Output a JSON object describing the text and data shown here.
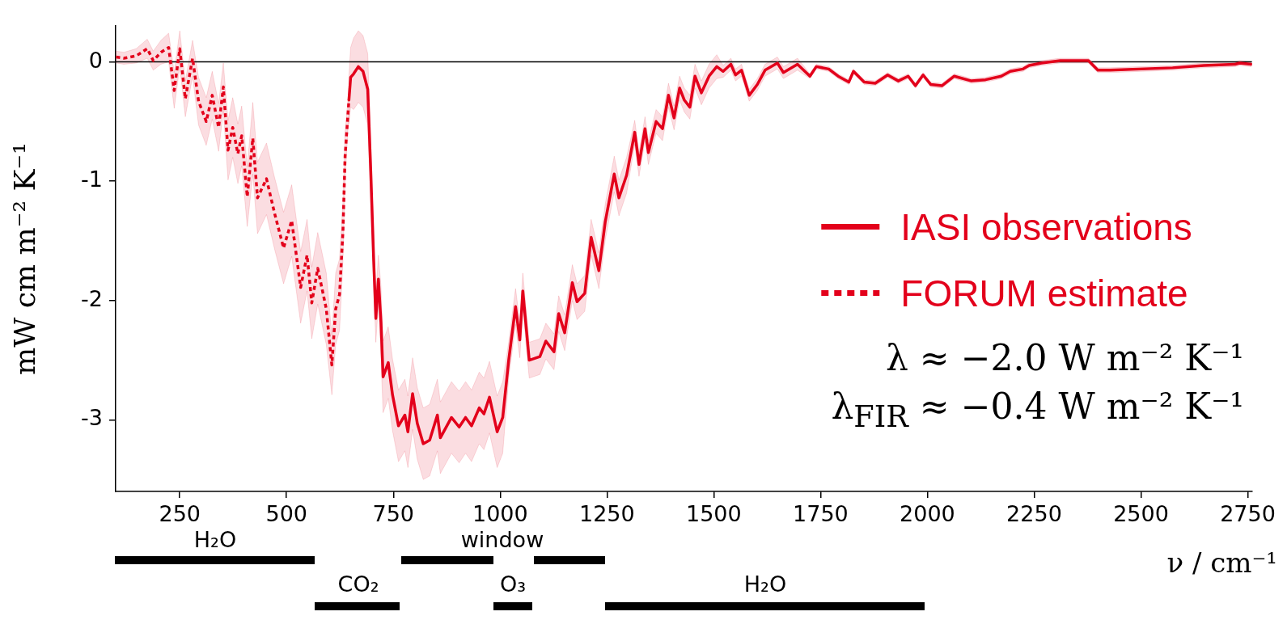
{
  "chart_data": {
    "type": "line",
    "xlabel": "ν / cm⁻¹",
    "ylabel": "mW cm m⁻² K⁻¹",
    "xlim": [
      100,
      2760
    ],
    "ylim": [
      -3.6,
      0.3
    ],
    "xticks": [
      250,
      500,
      750,
      1000,
      1250,
      1500,
      1750,
      2000,
      2250,
      2500,
      2750
    ],
    "yticks": [
      0,
      -1,
      -2,
      -3
    ],
    "legend": "right",
    "ref_lines": [
      {
        "axis": "y",
        "value": 0,
        "color": "#000000"
      }
    ],
    "annotations": [
      "λ ≈ −2.0 W m⁻² K⁻¹",
      "λ$_{FIR}$ ≈ −0.4 W m⁻² K⁻¹",
      "H₂O",
      "window",
      "CO₂",
      "O₃",
      "H₂O"
    ],
    "series": [
      {
        "name": "IASI observations",
        "color": "#e3001b",
        "type": "line",
        "line_style": "solid",
        "x": [
          646,
          650,
          657,
          668,
          679,
          690,
          697,
          704,
          709,
          715,
          721,
          726,
          738,
          748,
          762,
          777,
          784,
          795,
          806,
          820,
          835,
          853,
          860,
          886,
          904,
          919,
          933,
          951,
          962,
          975,
          993,
          1006,
          1020,
          1036,
          1046,
          1053,
          1068,
          1093,
          1107,
          1126,
          1137,
          1151,
          1169,
          1180,
          1198,
          1213,
          1231,
          1246,
          1267,
          1278,
          1296,
          1315,
          1325,
          1339,
          1347,
          1365,
          1380,
          1394,
          1407,
          1420,
          1431,
          1444,
          1456,
          1471,
          1489,
          1507,
          1522,
          1540,
          1551,
          1565,
          1583,
          1602,
          1620,
          1649,
          1663,
          1696,
          1725,
          1740,
          1769,
          1791,
          1816,
          1827,
          1852,
          1878,
          1907,
          1932,
          1955,
          1972,
          1990,
          2008,
          2034,
          2063,
          2103,
          2136,
          2173,
          2194,
          2224,
          2238,
          2267,
          2311,
          2377,
          2399,
          2428,
          2574,
          2647,
          2720,
          2731,
          2758
        ],
        "values": [
          -0.32,
          -0.13,
          -0.1,
          -0.04,
          -0.08,
          -0.23,
          -0.91,
          -1.67,
          -2.15,
          -1.82,
          -2.18,
          -2.64,
          -2.52,
          -2.79,
          -3.05,
          -2.96,
          -3.1,
          -2.78,
          -3.03,
          -3.2,
          -3.17,
          -2.96,
          -3.15,
          -2.98,
          -3.06,
          -2.98,
          -3.05,
          -2.9,
          -2.95,
          -2.81,
          -3.1,
          -2.98,
          -2.5,
          -2.05,
          -2.33,
          -1.92,
          -2.5,
          -2.47,
          -2.34,
          -2.43,
          -2.11,
          -2.27,
          -1.85,
          -2.01,
          -1.94,
          -1.47,
          -1.75,
          -1.34,
          -0.94,
          -1.14,
          -0.95,
          -0.59,
          -0.86,
          -0.56,
          -0.76,
          -0.5,
          -0.56,
          -0.28,
          -0.47,
          -0.22,
          -0.32,
          -0.38,
          -0.12,
          -0.26,
          -0.12,
          -0.04,
          -0.08,
          -0.02,
          -0.11,
          -0.07,
          -0.28,
          -0.19,
          -0.07,
          -0.01,
          -0.09,
          -0.02,
          -0.12,
          -0.04,
          -0.06,
          -0.12,
          -0.17,
          -0.08,
          -0.17,
          -0.18,
          -0.11,
          -0.16,
          -0.12,
          -0.2,
          -0.11,
          -0.19,
          -0.2,
          -0.12,
          -0.16,
          -0.15,
          -0.12,
          -0.08,
          -0.06,
          -0.03,
          -0.01,
          0.01,
          0.01,
          -0.07,
          -0.07,
          -0.05,
          -0.03,
          -0.02,
          -0.01,
          -0.02
        ],
        "lower": [
          -0.52,
          -0.38,
          -0.4,
          -0.34,
          -0.38,
          -0.53,
          -1.16,
          -1.87,
          -2.35,
          -2.02,
          -2.48,
          -2.94,
          -2.82,
          -3.09,
          -3.35,
          -3.26,
          -3.4,
          -3.08,
          -3.33,
          -3.5,
          -3.47,
          -3.26,
          -3.45,
          -3.28,
          -3.36,
          -3.28,
          -3.35,
          -3.2,
          -3.25,
          -3.11,
          -3.4,
          -3.28,
          -2.65,
          -2.2,
          -2.48,
          -2.07,
          -2.65,
          -2.62,
          -2.49,
          -2.58,
          -2.26,
          -2.42,
          -2,
          -2.16,
          -2.09,
          -1.62,
          -1.9,
          -1.49,
          -1.09,
          -1.29,
          -1.1,
          -0.69,
          -0.96,
          -0.66,
          -0.86,
          -0.6,
          -0.66,
          -0.38,
          -0.57,
          -0.32,
          -0.42,
          -0.48,
          -0.22,
          -0.36,
          -0.22,
          -0.14,
          -0.13,
          -0.07,
          -0.16,
          -0.12,
          -0.33,
          -0.24,
          -0.12,
          -0.06,
          -0.14,
          -0.07,
          -0.14,
          -0.06,
          -0.08,
          -0.14,
          -0.19,
          -0.1,
          -0.19,
          -0.2,
          -0.13,
          -0.18,
          -0.14,
          -0.22,
          -0.13,
          -0.21,
          -0.22,
          -0.14,
          -0.18,
          -0.17,
          -0.14,
          -0.1,
          -0.08,
          -0.05,
          -0.03,
          -0.01,
          -0.01,
          -0.09,
          -0.09,
          -0.07,
          -0.05,
          -0.04,
          -0.03,
          -0.04
        ],
        "upper": [
          -0.12,
          0.12,
          0.2,
          0.26,
          0.22,
          0.07,
          -0.66,
          -1.47,
          -1.95,
          -1.62,
          -1.88,
          -2.34,
          -2.22,
          -2.49,
          -2.75,
          -2.66,
          -2.8,
          -2.48,
          -2.73,
          -2.9,
          -2.87,
          -2.66,
          -2.85,
          -2.68,
          -2.76,
          -2.68,
          -2.75,
          -2.6,
          -2.65,
          -2.51,
          -2.8,
          -2.68,
          -2.35,
          -1.9,
          -2.18,
          -1.77,
          -2.35,
          -2.32,
          -2.19,
          -2.28,
          -1.96,
          -2.12,
          -1.7,
          -1.86,
          -1.79,
          -1.32,
          -1.6,
          -1.19,
          -0.79,
          -0.99,
          -0.8,
          -0.49,
          -0.76,
          -0.46,
          -0.66,
          -0.4,
          -0.46,
          -0.18,
          -0.37,
          -0.12,
          -0.22,
          -0.28,
          -0.02,
          -0.16,
          -0.02,
          0.06,
          -0.03,
          0.03,
          -0.06,
          -0.02,
          -0.23,
          -0.14,
          -0.02,
          0.04,
          -0.04,
          0.03,
          -0.1,
          -0.02,
          -0.04,
          -0.1,
          -0.15,
          -0.06,
          -0.15,
          -0.16,
          -0.09,
          -0.14,
          -0.1,
          -0.18,
          -0.09,
          -0.17,
          -0.18,
          -0.1,
          -0.14,
          -0.13,
          -0.1,
          -0.06,
          -0.04,
          -0.01,
          0.01,
          0.03,
          0.03,
          -0.05,
          -0.05,
          -0.03,
          -0.01,
          0,
          0.01,
          0
        ]
      },
      {
        "name": "FORUM estimate",
        "color": "#e3001b",
        "type": "line",
        "line_style": "dotted",
        "x": [
          101,
          119,
          148,
          174,
          188,
          206,
          224,
          237,
          250,
          263,
          280,
          294,
          312,
          326,
          341,
          352,
          363,
          374,
          386,
          395,
          408,
          421,
          432,
          453,
          472,
          493,
          512,
          533,
          548,
          559,
          573,
          593,
          606,
          615,
          624,
          632,
          637,
          646
        ],
        "values": [
          0.04,
          0.03,
          0.05,
          0.11,
          0.01,
          0.08,
          0.12,
          -0.24,
          0.11,
          -0.31,
          0.03,
          -0.33,
          -0.5,
          -0.28,
          -0.55,
          -0.21,
          -0.74,
          -0.55,
          -0.77,
          -0.62,
          -1.13,
          -0.64,
          -1.14,
          -0.98,
          -1.27,
          -1.56,
          -1.33,
          -1.89,
          -1.62,
          -2.02,
          -1.73,
          -2.07,
          -2.54,
          -2.07,
          -1.95,
          -1.42,
          -0.79,
          -0.32
        ],
        "lower": [
          -0.01,
          -0.02,
          -0.01,
          0.03,
          -0.07,
          -0.02,
          0,
          -0.39,
          -0.04,
          -0.46,
          -0.12,
          -0.53,
          -0.7,
          -0.48,
          -0.75,
          -0.41,
          -0.99,
          -0.8,
          -1.02,
          -0.87,
          -1.38,
          -0.94,
          -1.44,
          -1.28,
          -1.57,
          -1.86,
          -1.63,
          -2.19,
          -1.92,
          -2.32,
          -2.03,
          -2.37,
          -2.79,
          -2.37,
          -2.25,
          -1.67,
          -0.99,
          -0.42
        ],
        "upper": [
          0.09,
          0.08,
          0.11,
          0.19,
          0.09,
          0.18,
          0.24,
          -0.09,
          0.26,
          -0.16,
          0.18,
          -0.13,
          -0.3,
          -0.08,
          -0.35,
          -0.01,
          -0.49,
          -0.3,
          -0.52,
          -0.37,
          -0.88,
          -0.34,
          -0.84,
          -0.68,
          -0.97,
          -1.26,
          -1.03,
          -1.59,
          -1.32,
          -1.72,
          -1.43,
          -1.77,
          -2.29,
          -1.77,
          -1.65,
          -1.17,
          -0.59,
          -0.22
        ]
      }
    ]
  }
}
